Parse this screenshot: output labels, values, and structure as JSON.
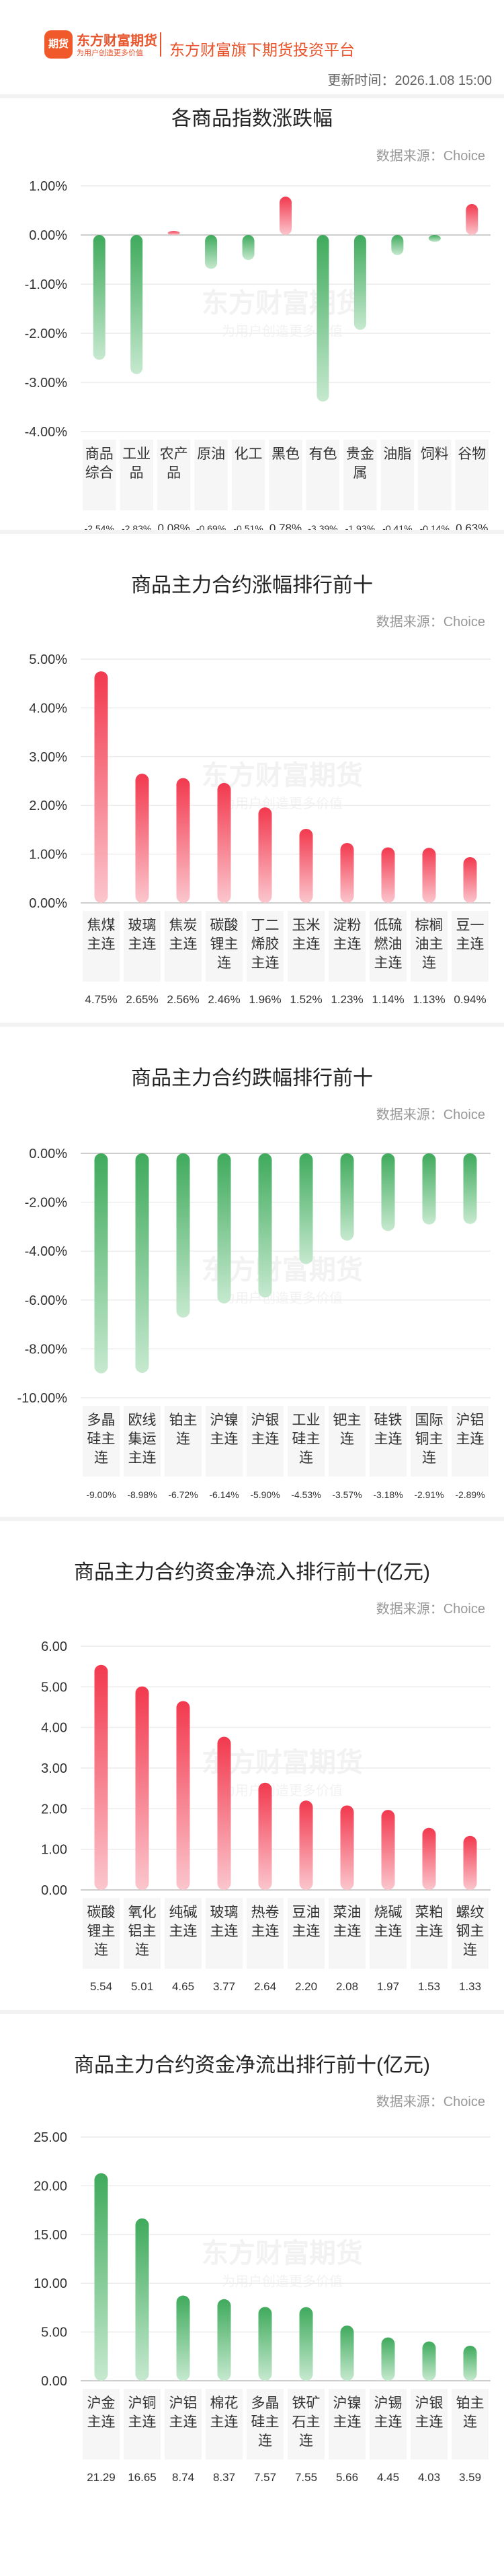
{
  "header": {
    "logo_text": "期货",
    "brand_name": "东方财富期货",
    "brand_slogan": "为用户创造更多价值",
    "platform": "东方财富旗下期货投资平台",
    "update_time": "更新时间：2026.1.08 15:00"
  },
  "source": "数据来源：Choice",
  "watermark": {
    "main": "东方财富期货",
    "sub": "为用户创造更多价值"
  },
  "colors": {
    "up": "#f2394e",
    "down": "#3faa5c",
    "accent": "#e8542c"
  },
  "chart_data": [
    {
      "type": "bar",
      "title": "各商品指数涨跌幅",
      "categories": [
        [
          "商品",
          "综合"
        ],
        [
          "工业",
          "品"
        ],
        [
          "农产",
          "品"
        ],
        [
          "原油"
        ],
        [
          "化工"
        ],
        [
          "黑色"
        ],
        [
          "有色"
        ],
        [
          "贵金",
          "属"
        ],
        [
          "油脂"
        ],
        [
          "饲料"
        ],
        [
          "谷物"
        ]
      ],
      "values": [
        -2.54,
        -2.83,
        0.08,
        -0.69,
        -0.51,
        0.78,
        -3.39,
        -1.93,
        -0.41,
        -0.14,
        0.63
      ],
      "value_labels": [
        "-2.54%",
        "-2.83%",
        "0.08%",
        "-0.69%",
        "-0.51%",
        "0.78%",
        "-3.39%",
        "-1.93%",
        "-0.41%",
        "-0.14%",
        "0.63%"
      ],
      "ylim": [
        -4,
        1
      ],
      "yticks": [
        1,
        0,
        -1,
        -2,
        -3,
        -4
      ],
      "ytick_labels": [
        "1.00%",
        "0.00%",
        "-1.00%",
        "-2.00%",
        "-3.00%",
        "-4.00%"
      ]
    },
    {
      "type": "bar",
      "title": "商品主力合约涨幅排行前十",
      "categories": [
        [
          "焦煤",
          "主连"
        ],
        [
          "玻璃",
          "主连"
        ],
        [
          "焦炭",
          "主连"
        ],
        [
          "碳酸",
          "锂主",
          "连"
        ],
        [
          "丁二",
          "烯胶",
          "主连"
        ],
        [
          "玉米",
          "主连"
        ],
        [
          "淀粉",
          "主连"
        ],
        [
          "低硫",
          "燃油",
          "主连"
        ],
        [
          "棕榈",
          "油主",
          "连"
        ],
        [
          "豆一",
          "主连"
        ]
      ],
      "values": [
        4.75,
        2.65,
        2.56,
        2.46,
        1.96,
        1.52,
        1.23,
        1.14,
        1.13,
        0.94
      ],
      "value_labels": [
        "4.75%",
        "2.65%",
        "2.56%",
        "2.46%",
        "1.96%",
        "1.52%",
        "1.23%",
        "1.14%",
        "1.13%",
        "0.94%"
      ],
      "ylim": [
        0,
        5
      ],
      "yticks": [
        5,
        4,
        3,
        2,
        1,
        0
      ],
      "ytick_labels": [
        "5.00%",
        "4.00%",
        "3.00%",
        "2.00%",
        "1.00%",
        "0.00%"
      ]
    },
    {
      "type": "bar",
      "title": "商品主力合约跌幅排行前十",
      "categories": [
        [
          "多晶",
          "硅主",
          "连"
        ],
        [
          "欧线",
          "集运",
          "主连"
        ],
        [
          "铂主",
          "连"
        ],
        [
          "沪镍",
          "主连"
        ],
        [
          "沪银",
          "主连"
        ],
        [
          "工业",
          "硅主",
          "连"
        ],
        [
          "钯主",
          "连"
        ],
        [
          "硅铁",
          "主连"
        ],
        [
          "国际",
          "铜主",
          "连"
        ],
        [
          "沪铝",
          "主连"
        ]
      ],
      "values": [
        -9.0,
        -8.98,
        -6.72,
        -6.14,
        -5.9,
        -4.53,
        -3.57,
        -3.18,
        -2.91,
        -2.89
      ],
      "value_labels": [
        "-9.00%",
        "-8.98%",
        "-6.72%",
        "-6.14%",
        "-5.90%",
        "-4.53%",
        "-3.57%",
        "-3.18%",
        "-2.91%",
        "-2.89%"
      ],
      "ylim": [
        -10,
        0
      ],
      "yticks": [
        0,
        -2,
        -4,
        -6,
        -8,
        -10
      ],
      "ytick_labels": [
        "0.00%",
        "-2.00%",
        "-4.00%",
        "-6.00%",
        "-8.00%",
        "-10.00%"
      ]
    },
    {
      "type": "bar",
      "title": "商品主力合约资金净流入排行前十(亿元)",
      "categories": [
        [
          "碳酸",
          "锂主",
          "连"
        ],
        [
          "氧化",
          "铝主",
          "连"
        ],
        [
          "纯碱",
          "主连"
        ],
        [
          "玻璃",
          "主连"
        ],
        [
          "热卷",
          "主连"
        ],
        [
          "豆油",
          "主连"
        ],
        [
          "菜油",
          "主连"
        ],
        [
          "烧碱",
          "主连"
        ],
        [
          "菜粕",
          "主连"
        ],
        [
          "螺纹",
          "钢主",
          "连"
        ]
      ],
      "values": [
        5.54,
        5.01,
        4.65,
        3.77,
        2.64,
        2.2,
        2.08,
        1.97,
        1.53,
        1.33
      ],
      "value_labels": [
        "5.54",
        "5.01",
        "4.65",
        "3.77",
        "2.64",
        "2.20",
        "2.08",
        "1.97",
        "1.53",
        "1.33"
      ],
      "ylim": [
        0,
        6
      ],
      "yticks": [
        6,
        5,
        4,
        3,
        2,
        1,
        0
      ],
      "ytick_labels": [
        "6.00",
        "5.00",
        "4.00",
        "3.00",
        "2.00",
        "1.00",
        "0.00"
      ]
    },
    {
      "type": "bar",
      "title": "商品主力合约资金净流出排行前十(亿元)",
      "categories": [
        [
          "沪金",
          "主连"
        ],
        [
          "沪铜",
          "主连"
        ],
        [
          "沪铝",
          "主连"
        ],
        [
          "棉花",
          "主连"
        ],
        [
          "多晶",
          "硅主",
          "连"
        ],
        [
          "铁矿",
          "石主",
          "连"
        ],
        [
          "沪镍",
          "主连"
        ],
        [
          "沪锡",
          "主连"
        ],
        [
          "沪银",
          "主连"
        ],
        [
          "铂主",
          "连"
        ]
      ],
      "values": [
        21.29,
        16.65,
        8.74,
        8.37,
        7.57,
        7.55,
        5.66,
        4.45,
        4.03,
        3.59
      ],
      "value_labels": [
        "21.29",
        "16.65",
        "8.74",
        "8.37",
        "7.57",
        "7.55",
        "5.66",
        "4.45",
        "4.03",
        "3.59"
      ],
      "ylim": [
        0,
        25
      ],
      "yticks": [
        25,
        20,
        15,
        10,
        5,
        0
      ],
      "ytick_labels": [
        "25.00",
        "20.00",
        "15.00",
        "10.00",
        "5.00",
        "0.00"
      ],
      "down_style": true
    }
  ]
}
